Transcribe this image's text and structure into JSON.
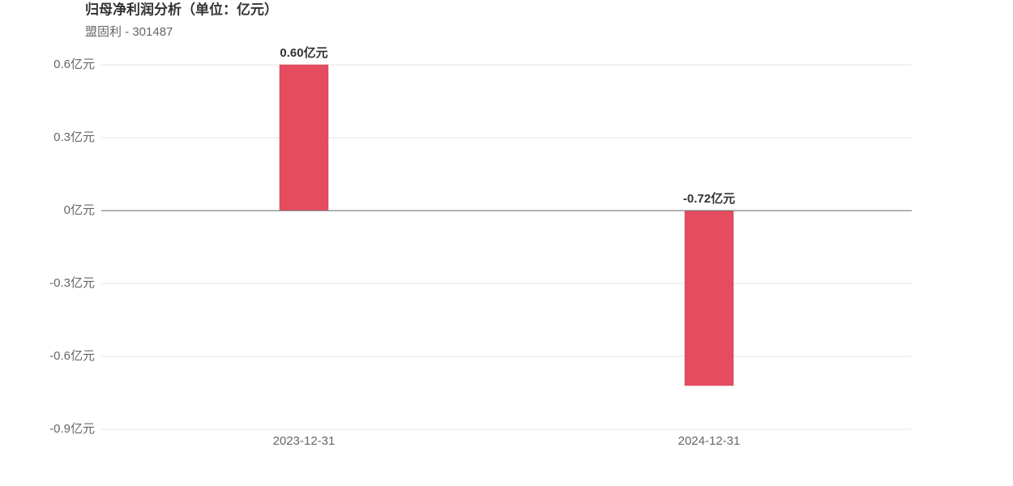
{
  "chart_data": {
    "type": "bar",
    "title": "归母净利润分析（单位：亿元）",
    "subtitle": "盟固利 - 301487",
    "categories": [
      "2023-12-31",
      "2024-12-31"
    ],
    "values": [
      0.6,
      -0.72
    ],
    "value_labels": [
      "0.60亿元",
      "-0.72亿元"
    ],
    "color": "#e64c5f",
    "ylim": [
      -0.9,
      0.6
    ],
    "yticks": [
      {
        "value": 0.6,
        "label": "0.6亿元"
      },
      {
        "value": 0.3,
        "label": "0.3亿元"
      },
      {
        "value": 0,
        "label": "0亿元"
      },
      {
        "value": -0.3,
        "label": "-0.3亿元"
      },
      {
        "value": -0.6,
        "label": "-0.6亿元"
      },
      {
        "value": -0.9,
        "label": "-0.9亿元"
      }
    ],
    "grid": true
  }
}
